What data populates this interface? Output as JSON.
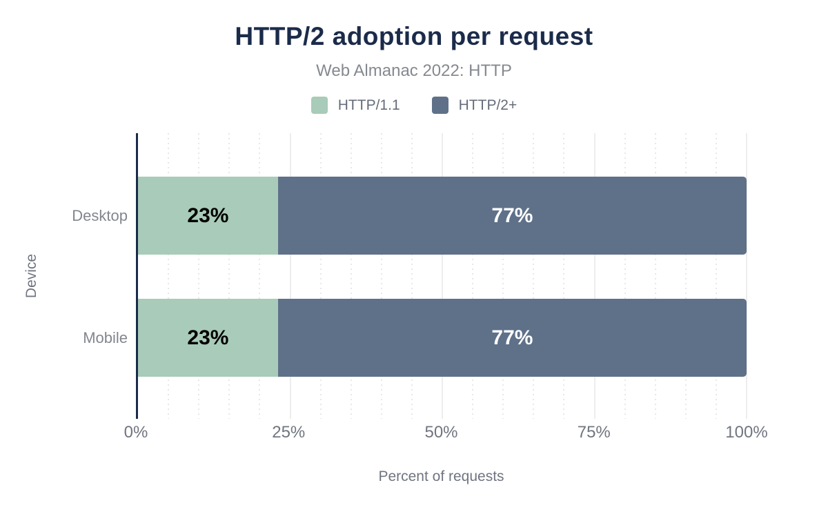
{
  "chart_data": {
    "type": "bar",
    "orientation": "horizontal",
    "stacked": true,
    "title": "HTTP/2 adoption per request",
    "subtitle": "Web Almanac 2022: HTTP",
    "categories": [
      "Desktop",
      "Mobile"
    ],
    "series": [
      {
        "name": "HTTP/1.1",
        "color": "#a9cbb9",
        "label_color": "#000000",
        "values": [
          23,
          23
        ]
      },
      {
        "name": "HTTP/2+",
        "color": "#5f7189",
        "label_color": "#ffffff",
        "values": [
          77,
          77
        ]
      }
    ],
    "value_suffix": "%",
    "xlabel": "Percent of requests",
    "ylabel": "Device",
    "xlim": [
      0,
      100
    ],
    "x_ticks": [
      "0%",
      "25%",
      "50%",
      "75%",
      "100%"
    ],
    "legend_position": "top",
    "grid": {
      "major_every": 25,
      "minor_every": 5,
      "minor_style": "dotted"
    },
    "colors": {
      "title": "#1b2b4a",
      "axis_line": "#1a2b49",
      "major_gridline": "#ededed",
      "minor_gridline": "#e7e7e7",
      "tick_label": "#70757f"
    }
  }
}
